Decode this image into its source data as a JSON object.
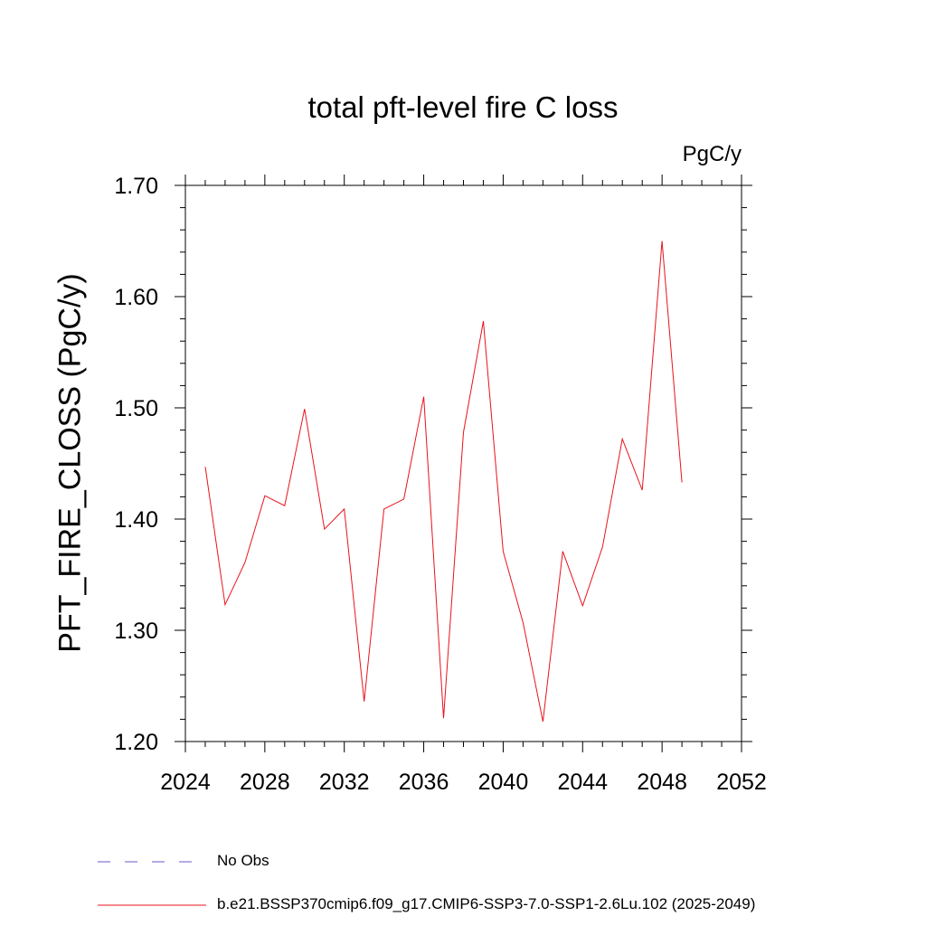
{
  "chart_data": {
    "type": "line",
    "title": "total pft-level fire C loss",
    "units_label": "PgC/y",
    "ylabel": "PFT_FIRE_CLOSS  (PgC/y)",
    "xlabel": "",
    "xlim": [
      2024,
      2052
    ],
    "ylim": [
      1.2,
      1.7
    ],
    "x_ticks": [
      "2024",
      "2028",
      "2032",
      "2036",
      "2040",
      "2044",
      "2048",
      "2052"
    ],
    "y_ticks": [
      "1.20",
      "1.30",
      "1.40",
      "1.50",
      "1.60",
      "1.70"
    ],
    "grid": false,
    "legend_position": "bottom-left",
    "series": [
      {
        "name": "b.e21.BSSP370cmip6.f09_g17.CMIP6-SSP3-7.0-SSP1-2.6Lu.102 (2025-2049)",
        "color": "#e8121b",
        "x": [
          2025,
          2026,
          2027,
          2028,
          2029,
          2030,
          2031,
          2032,
          2033,
          2034,
          2035,
          2036,
          2037,
          2038,
          2039,
          2040,
          2041,
          2042,
          2043,
          2044,
          2045,
          2046,
          2047,
          2048,
          2049
        ],
        "values": [
          1.447,
          1.323,
          1.361,
          1.421,
          1.412,
          1.499,
          1.391,
          1.409,
          1.236,
          1.409,
          1.418,
          1.51,
          1.221,
          1.478,
          1.578,
          1.371,
          1.307,
          1.218,
          1.371,
          1.322,
          1.375,
          1.472,
          1.426,
          1.65,
          1.433
        ]
      }
    ]
  },
  "legend": [
    {
      "label": "No Obs",
      "color": "#6a5acd",
      "style": "dashed"
    },
    {
      "label": "b.e21.BSSP370cmip6.f09_g17.CMIP6-SSP3-7.0-SSP1-2.6Lu.102 (2025-2049)",
      "color": "#e8121b",
      "style": "solid"
    }
  ]
}
